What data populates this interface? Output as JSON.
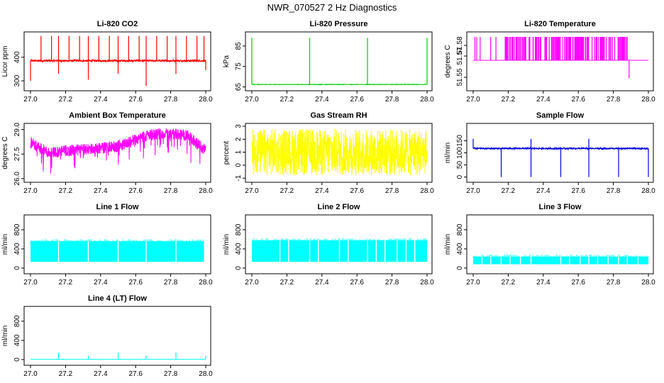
{
  "figure_title": "NWR_070527  2 Hz Diagnostics",
  "chart_data": [
    {
      "type": "line",
      "title": "Li-820 CO2",
      "ylabel": "Licor ppm",
      "xlim": [
        27.0,
        28.0
      ],
      "ylim": [
        270,
        495
      ],
      "xticks": [
        "27.0",
        "27.2",
        "27.4",
        "27.6",
        "27.8",
        "28.0"
      ],
      "yticks": [
        {
          "v": 300,
          "label": "300"
        },
        {
          "v": 400,
          "label": "400"
        }
      ],
      "color": "#ff0000",
      "baseline": 385,
      "noise": 4,
      "spike_pattern": "co2"
    },
    {
      "type": "line",
      "title": "Li-820 Pressure",
      "ylabel": "kPa",
      "xlim": [
        27.0,
        28.0
      ],
      "ylim": [
        64.5,
        90.5
      ],
      "xticks": [
        "27.0",
        "27.2",
        "27.4",
        "27.6",
        "27.8",
        "28.0"
      ],
      "yticks": [
        {
          "v": 65,
          "label": "65"
        },
        {
          "v": 75,
          "label": "75"
        },
        {
          "v": 85,
          "label": "85"
        }
      ],
      "color": "#00cc00",
      "baseline": 66.2,
      "noise": 0.1,
      "spike_pattern": "pressure"
    },
    {
      "type": "line",
      "title": "Li-820 Temperature",
      "ylabel": "degrees C",
      "xlim": [
        27.0,
        28.0
      ],
      "ylim": [
        51.54,
        51.59
      ],
      "xticks": [
        "27.0",
        "27.2",
        "27.4",
        "27.6",
        "27.8",
        "28.0"
      ],
      "yticks": [
        {
          "v": 51.55,
          "label": "51.55"
        },
        {
          "v": 51.57,
          "label": "51.57"
        },
        {
          "v": 51.58,
          "label": "51.58"
        }
      ],
      "color": "#ff00ff",
      "baseline": 51.566,
      "noise": 0,
      "spike_pattern": "temperature"
    },
    {
      "type": "line",
      "title": "Ambient Box Temperature",
      "ylabel": "degrees C",
      "xlim": [
        27.0,
        28.0
      ],
      "ylim": [
        25.95,
        29.2
      ],
      "xticks": [
        "27.0",
        "27.2",
        "27.4",
        "27.6",
        "27.8",
        "28.0"
      ],
      "yticks": [
        {
          "v": 26.0,
          "label": "26.0"
        },
        {
          "v": 27.5,
          "label": "27.5"
        },
        {
          "v": 29.0,
          "label": "29.0"
        }
      ],
      "color": "#ff00ff",
      "baseline": 28.0,
      "noise": 0.35,
      "spike_pattern": "ambient"
    },
    {
      "type": "line",
      "title": "Gas Stream RH",
      "ylabel": "percent",
      "xlim": [
        27.0,
        28.0
      ],
      "ylim": [
        -1.1,
        3.0
      ],
      "xticks": [
        "27.0",
        "27.2",
        "27.4",
        "27.6",
        "27.8",
        "28.0"
      ],
      "yticks": [
        {
          "v": -1,
          "label": "-1"
        },
        {
          "v": 0,
          "label": "0"
        },
        {
          "v": 1,
          "label": "1"
        },
        {
          "v": 2,
          "label": "2"
        },
        {
          "v": 3,
          "label": "3"
        }
      ],
      "color": "#ffff00",
      "baseline": 1.0,
      "noise": 1.8,
      "spike_pattern": "noise"
    },
    {
      "type": "line",
      "title": "Sample Flow",
      "ylabel": "ml/min",
      "xlim": [
        27.0,
        28.0
      ],
      "ylim": [
        -10,
        210
      ],
      "xticks": [
        "27.0",
        "27.2",
        "27.4",
        "27.6",
        "27.8",
        "28.0"
      ],
      "yticks": [
        {
          "v": 0,
          "label": "0"
        },
        {
          "v": 50,
          "label": "50"
        },
        {
          "v": 100,
          "label": "100"
        },
        {
          "v": 150,
          "label": "150"
        }
      ],
      "color": "#0000dd",
      "baseline": 118,
      "noise": 3,
      "spike_pattern": "sample"
    },
    {
      "type": "area",
      "title": "Line 1 Flow",
      "ylabel": "ml/min",
      "xlim": [
        27.0,
        28.0
      ],
      "ylim": [
        -60,
        1050
      ],
      "xticks": [
        "27.0",
        "27.2",
        "27.4",
        "27.6",
        "27.8",
        "28.0"
      ],
      "yticks": [
        {
          "v": 0,
          "label": "0"
        },
        {
          "v": 400,
          "label": "400"
        },
        {
          "v": 800,
          "label": "800"
        }
      ],
      "color": "#00ffff",
      "band": [
        130,
        560
      ],
      "band_x": [
        27.0,
        27.99
      ],
      "gaps": [
        27.16,
        27.33,
        27.5,
        27.66,
        27.83
      ]
    },
    {
      "type": "area",
      "title": "Line 2 Flow",
      "ylabel": "ml/min",
      "xlim": [
        27.0,
        28.0
      ],
      "ylim": [
        -60,
        1050
      ],
      "xticks": [
        "27.0",
        "27.2",
        "27.4",
        "27.6",
        "27.8",
        "28.0"
      ],
      "yticks": [
        {
          "v": 0,
          "label": "0"
        },
        {
          "v": 400,
          "label": "400"
        },
        {
          "v": 800,
          "label": "800"
        }
      ],
      "color": "#00ffff",
      "band": [
        130,
        580
      ],
      "band_x": [
        27.0,
        28.0
      ],
      "gaps": [
        27.16,
        27.21,
        27.33,
        27.38,
        27.5,
        27.55,
        27.66,
        27.71,
        27.76,
        27.83,
        27.88,
        27.93
      ]
    },
    {
      "type": "area",
      "title": "Line 3 Flow",
      "ylabel": "ml/min",
      "xlim": [
        27.0,
        28.0
      ],
      "ylim": [
        -60,
        1050
      ],
      "xticks": [
        "27.0",
        "27.2",
        "27.4",
        "27.6",
        "27.8",
        "28.0"
      ],
      "yticks": [
        {
          "v": 0,
          "label": "0"
        },
        {
          "v": 400,
          "label": "400"
        },
        {
          "v": 800,
          "label": "800"
        }
      ],
      "color": "#00ffff",
      "band": [
        80,
        240
      ],
      "band_x": [
        27.0,
        28.0
      ],
      "gaps": [
        27.05,
        27.1,
        27.16,
        27.21,
        27.27,
        27.33,
        27.5,
        27.55,
        27.61,
        27.66,
        27.71,
        27.77,
        27.83,
        27.88,
        27.94
      ]
    },
    {
      "type": "line",
      "title": "Line 4 (LT) Flow",
      "ylabel": "ml/min",
      "xlim": [
        27.0,
        28.0
      ],
      "ylim": [
        -60,
        1050
      ],
      "xticks": [
        "27.0",
        "27.2",
        "27.4",
        "27.6",
        "27.8",
        "28.0"
      ],
      "yticks": [
        {
          "v": 0,
          "label": "0"
        },
        {
          "v": 400,
          "label": "400"
        },
        {
          "v": 800,
          "label": "800"
        }
      ],
      "color": "#00ffff",
      "baseline": 5,
      "noise": 0,
      "spikes": [
        {
          "x": 27.16,
          "y": 150
        },
        {
          "x": 27.33,
          "y": 75
        },
        {
          "x": 27.5,
          "y": 150
        },
        {
          "x": 27.66,
          "y": 80
        },
        {
          "x": 27.83,
          "y": 150
        },
        {
          "x": 28.0,
          "y": 85
        }
      ]
    }
  ]
}
